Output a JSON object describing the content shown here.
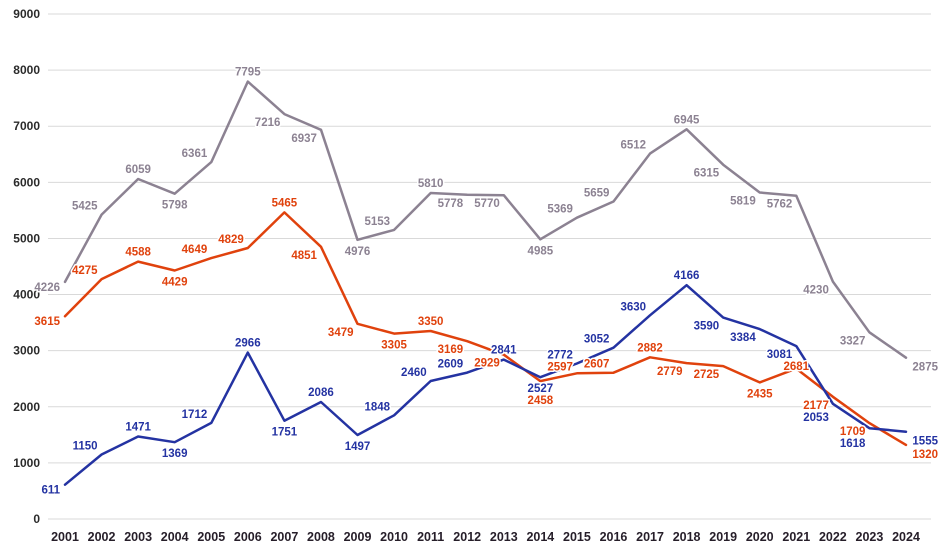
{
  "chart_data": {
    "type": "line",
    "title": "",
    "xlabel": "",
    "ylabel": "",
    "x": [
      2001,
      2002,
      2003,
      2004,
      2005,
      2006,
      2007,
      2008,
      2009,
      2010,
      2011,
      2012,
      2013,
      2014,
      2015,
      2016,
      2017,
      2018,
      2019,
      2020,
      2021,
      2022,
      2023,
      2024
    ],
    "ylim": [
      0,
      9000
    ],
    "yticks": [
      0,
      1000,
      2000,
      3000,
      4000,
      5000,
      6000,
      7000,
      8000,
      9000
    ],
    "grid": true,
    "legend_position": "none",
    "data_labels": true,
    "colors": {
      "background": "#ffffff",
      "gridline": "#d9d9d9",
      "y_axis_text": "#2b2b2b",
      "x_axis_text": "#261e29"
    },
    "series": [
      {
        "name": "series-gray",
        "color": "#8c8292",
        "values": [
          4226,
          5425,
          6059,
          5798,
          6361,
          7795,
          7216,
          6937,
          4976,
          5153,
          5810,
          5778,
          5770,
          4985,
          5369,
          5659,
          6512,
          6945,
          6315,
          5819,
          5762,
          4230,
          3327,
          2875
        ]
      },
      {
        "name": "series-orange-red",
        "color": "#e0420d",
        "values": [
          3615,
          4275,
          4588,
          4429,
          4649,
          4829,
          5465,
          4851,
          3479,
          3305,
          3350,
          3169,
          2929,
          2458,
          2597,
          2607,
          2882,
          2779,
          2725,
          2435,
          2681,
          2177,
          1709,
          1320
        ]
      },
      {
        "name": "series-blue",
        "color": "#2433a2",
        "values": [
          611,
          1150,
          1471,
          1369,
          1712,
          2966,
          1751,
          2086,
          1497,
          1848,
          2460,
          2609,
          2841,
          2527,
          2772,
          3052,
          3630,
          4166,
          3590,
          3384,
          3081,
          2053,
          1618,
          1555
        ]
      }
    ]
  }
}
